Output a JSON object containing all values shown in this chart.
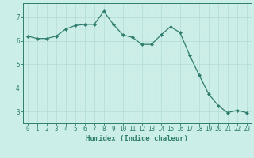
{
  "x": [
    0,
    1,
    2,
    3,
    4,
    5,
    6,
    7,
    8,
    9,
    10,
    11,
    12,
    13,
    14,
    15,
    16,
    17,
    18,
    19,
    20,
    21,
    22,
    23
  ],
  "y": [
    6.2,
    6.1,
    6.1,
    6.2,
    6.5,
    6.65,
    6.7,
    6.7,
    7.25,
    6.7,
    6.25,
    6.15,
    5.85,
    5.85,
    6.25,
    6.6,
    6.35,
    5.4,
    4.55,
    3.75,
    3.25,
    2.95,
    3.05,
    2.95
  ],
  "line_color": "#2e7d6e",
  "marker": "D",
  "marker_size": 2.0,
  "bg_color": "#cceee8",
  "grid_major_color": "#b8ddd8",
  "grid_minor_color": "#d0e8e4",
  "xlabel": "Humidex (Indice chaleur)",
  "xlim": [
    -0.5,
    23.5
  ],
  "ylim": [
    2.5,
    7.6
  ],
  "yticks": [
    3,
    4,
    5,
    6,
    7
  ],
  "xticks": [
    0,
    1,
    2,
    3,
    4,
    5,
    6,
    7,
    8,
    9,
    10,
    11,
    12,
    13,
    14,
    15,
    16,
    17,
    18,
    19,
    20,
    21,
    22,
    23
  ],
  "tick_color": "#2e7d6e",
  "label_fontsize": 6.5,
  "tick_fontsize": 5.5
}
